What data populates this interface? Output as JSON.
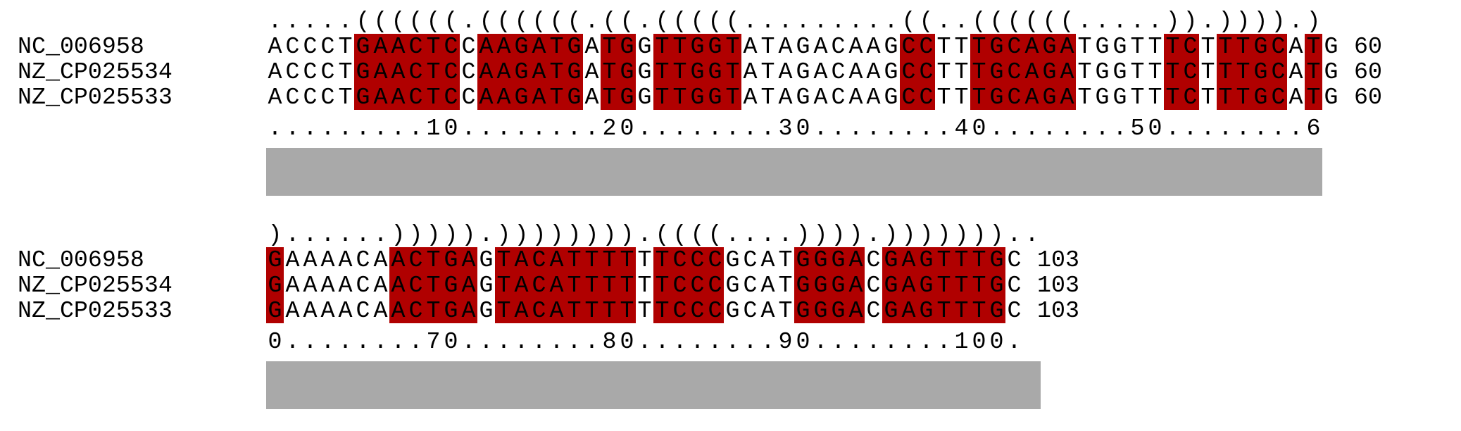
{
  "colors": {
    "paired": "#b00000",
    "bar": "#a9a9a9",
    "text": "#000000"
  },
  "blocks": [
    {
      "structure": ".....((((((.((((((.((.(((((.........((..((((((.....)).)))).)",
      "ruler": ".........10........20........30........40........50........6",
      "sequences": [
        {
          "name": "NC_006958",
          "seq": "ACCCTGAACTCCAAGATGATGGTTGGTATAGACAAGCCTTTGCAGATGGTTTCTTTGCATG",
          "end": "60"
        },
        {
          "name": "NZ_CP025534",
          "seq": "ACCCTGAACTCCAAGATGATGGTTGGTATAGACAAGCCTTTGCAGATGGTTTCTTTGCATG",
          "end": "60"
        },
        {
          "name": "NZ_CP025533",
          "seq": "ACCCTGAACTCCAAGATGATGGTTGGTATAGACAAGCCTTTGCAGATGGTTTCTTTGCATG",
          "end": "60"
        }
      ]
    },
    {
      "structure": ")......))))).)))))))).((((....)))).)))))))..",
      "ruler": "0........70........80........90........100.",
      "sequences": [
        {
          "name": "NC_006958",
          "seq": "GAAAACAACTGAGTACATTTTTTCCCGCATGGGACGAGTTTGC",
          "end": "103"
        },
        {
          "name": "NZ_CP025534",
          "seq": "GAAAACAACTGAGTACATTTTTTCCCGCATGGGACGAGTTTGC",
          "end": "103"
        },
        {
          "name": "NZ_CP025533",
          "seq": "GAAAACAACTGAGTACATTTTTTCCCGCATGGGACGAGTTTGC",
          "end": "103"
        }
      ]
    }
  ]
}
